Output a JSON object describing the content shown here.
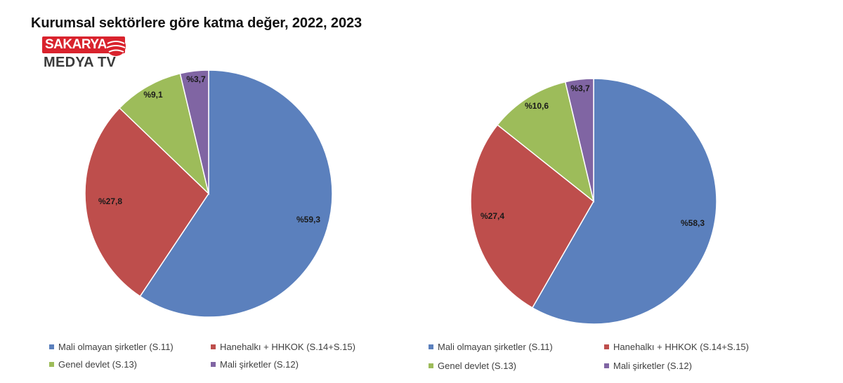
{
  "title": "Kurumsal sektörlere göre katma değer, 2022, 2023",
  "logo": {
    "brand": "SAKARYA",
    "sub": "MEDYA TV",
    "colors": {
      "red": "#d9232d",
      "text": "#3a3a3a"
    }
  },
  "chart_data": [
    {
      "type": "pie",
      "categories": [
        "Mali olmayan şirketler (S.11)",
        "Hanehalkı + HHKOK (S.14+S.15)",
        "Genel devlet (S.13)",
        "Mali şirketler (S.12)"
      ],
      "values": [
        59.3,
        27.8,
        9.1,
        3.7
      ],
      "labels": [
        "%59,3",
        "%27,8",
        "%9,1",
        "%3,7"
      ],
      "colors": [
        "#5b80bd",
        "#be4e4c",
        "#9dbc5a",
        "#8065a3"
      ],
      "legend": "bottom"
    },
    {
      "type": "pie",
      "categories": [
        "Mali olmayan şirketler (S.11)",
        "Hanehalkı + HHKOK (S.14+S.15)",
        "Genel devlet (S.13)",
        "Mali şirketler (S.12)"
      ],
      "values": [
        58.3,
        27.4,
        10.6,
        3.7
      ],
      "labels": [
        "%58,3",
        "%27,4",
        "%10,6",
        "%3,7"
      ],
      "colors": [
        "#5b80bd",
        "#be4e4c",
        "#9dbc5a",
        "#8065a3"
      ],
      "legend": "bottom"
    }
  ]
}
